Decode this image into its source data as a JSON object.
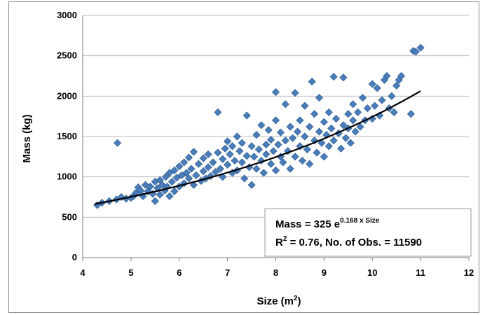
{
  "chart_data": {
    "type": "scatter",
    "title": "",
    "xlabel": "Size (m",
    "xlabel_sup": "2",
    "xlabel_end": ")",
    "ylabel": "Mass (kg)",
    "xlim": [
      4,
      12
    ],
    "ylim": [
      0,
      3000
    ],
    "x_ticks": [
      "4",
      "5",
      "6",
      "7",
      "8",
      "9",
      "10",
      "11",
      "12"
    ],
    "y_ticks": [
      "0",
      "500",
      "1000",
      "1500",
      "2000",
      "2500",
      "3000"
    ],
    "grid": "horizontal",
    "marker": "diamond",
    "colors": {
      "marker": "#4a7ebb",
      "marker_edge": "#2f5f95",
      "trend": "#000000",
      "grid": "#b8b8b8"
    },
    "trendline": {
      "type": "exponential",
      "a": 325,
      "b": 0.168,
      "x_range": [
        4.25,
        11.0
      ]
    },
    "annotation": {
      "line1_prefix": "Mass = 325 e",
      "line1_sup": "0.168 x Size",
      "line2_prefix": "R",
      "line2_sup": "2",
      "line2_rest": " = 0.76, No. of Obs.  = 11590"
    },
    "points": [
      [
        4.3,
        650
      ],
      [
        4.4,
        680
      ],
      [
        4.55,
        700
      ],
      [
        4.7,
        720
      ],
      [
        4.72,
        1420
      ],
      [
        4.8,
        750
      ],
      [
        4.9,
        730
      ],
      [
        5.0,
        740
      ],
      [
        5.05,
        760
      ],
      [
        5.1,
        800
      ],
      [
        5.15,
        870
      ],
      [
        5.2,
        830
      ],
      [
        5.25,
        760
      ],
      [
        5.3,
        900
      ],
      [
        5.35,
        820
      ],
      [
        5.4,
        880
      ],
      [
        5.45,
        790
      ],
      [
        5.5,
        700
      ],
      [
        5.5,
        940
      ],
      [
        5.55,
        860
      ],
      [
        5.6,
        780
      ],
      [
        5.6,
        960
      ],
      [
        5.65,
        900
      ],
      [
        5.7,
        830
      ],
      [
        5.72,
        1000
      ],
      [
        5.75,
        880
      ],
      [
        5.8,
        760
      ],
      [
        5.8,
        1050
      ],
      [
        5.85,
        940
      ],
      [
        5.9,
        820
      ],
      [
        5.9,
        1080
      ],
      [
        5.95,
        990
      ],
      [
        6.0,
        880
      ],
      [
        6.0,
        1130
      ],
      [
        6.05,
        1020
      ],
      [
        6.1,
        920
      ],
      [
        6.1,
        1180
      ],
      [
        6.15,
        1050
      ],
      [
        6.2,
        980
      ],
      [
        6.2,
        1240
      ],
      [
        6.25,
        1100
      ],
      [
        6.3,
        900
      ],
      [
        6.3,
        1310
      ],
      [
        6.35,
        1020
      ],
      [
        6.4,
        1160
      ],
      [
        6.45,
        950
      ],
      [
        6.5,
        1070
      ],
      [
        6.5,
        1230
      ],
      [
        6.55,
        980
      ],
      [
        6.6,
        1120
      ],
      [
        6.6,
        1280
      ],
      [
        6.65,
        1010
      ],
      [
        6.7,
        1180
      ],
      [
        6.75,
        1060
      ],
      [
        6.8,
        1800
      ],
      [
        6.8,
        1300
      ],
      [
        6.85,
        1100
      ],
      [
        6.9,
        1220
      ],
      [
        6.9,
        1000
      ],
      [
        6.95,
        1350
      ],
      [
        7.0,
        1150
      ],
      [
        7.0,
        1440
      ],
      [
        7.05,
        1280
      ],
      [
        7.1,
        1050
      ],
      [
        7.1,
        1380
      ],
      [
        7.15,
        1200
      ],
      [
        7.2,
        1500
      ],
      [
        7.2,
        1080
      ],
      [
        7.25,
        1320
      ],
      [
        7.3,
        1180
      ],
      [
        7.3,
        1420
      ],
      [
        7.35,
        980
      ],
      [
        7.4,
        1260
      ],
      [
        7.4,
        1760
      ],
      [
        7.45,
        1120
      ],
      [
        7.5,
        1380
      ],
      [
        7.5,
        900
      ],
      [
        7.55,
        1250
      ],
      [
        7.6,
        1520
      ],
      [
        7.6,
        1100
      ],
      [
        7.65,
        1340
      ],
      [
        7.7,
        1200
      ],
      [
        7.7,
        1640
      ],
      [
        7.75,
        1050
      ],
      [
        7.8,
        1400
      ],
      [
        7.8,
        1280
      ],
      [
        7.85,
        1580
      ],
      [
        7.9,
        1160
      ],
      [
        7.9,
        1460
      ],
      [
        7.95,
        1320
      ],
      [
        8.0,
        1700
      ],
      [
        8.0,
        1080
      ],
      [
        8.0,
        2050
      ],
      [
        8.05,
        1400
      ],
      [
        8.1,
        1250
      ],
      [
        8.1,
        1550
      ],
      [
        8.15,
        1180
      ],
      [
        8.2,
        1450
      ],
      [
        8.2,
        1900
      ],
      [
        8.25,
        1320
      ],
      [
        8.3,
        1620
      ],
      [
        8.3,
        1100
      ],
      [
        8.35,
        1480
      ],
      [
        8.4,
        1250
      ],
      [
        8.4,
        2040
      ],
      [
        8.45,
        1560
      ],
      [
        8.5,
        1380
      ],
      [
        8.5,
        1700
      ],
      [
        8.55,
        1200
      ],
      [
        8.6,
        1500
      ],
      [
        8.6,
        1880
      ],
      [
        8.65,
        1340
      ],
      [
        8.7,
        1620
      ],
      [
        8.7,
        1160
      ],
      [
        8.75,
        2180
      ],
      [
        8.8,
        1450
      ],
      [
        8.8,
        1780
      ],
      [
        8.85,
        1300
      ],
      [
        8.9,
        1560
      ],
      [
        8.9,
        1980
      ],
      [
        8.95,
        1420
      ],
      [
        9.0,
        1680
      ],
      [
        9.0,
        1250
      ],
      [
        9.05,
        1520
      ],
      [
        9.1,
        1800
      ],
      [
        9.1,
        1380
      ],
      [
        9.15,
        1600
      ],
      [
        9.2,
        2240
      ],
      [
        9.2,
        1450
      ],
      [
        9.25,
        1720
      ],
      [
        9.3,
        1540
      ],
      [
        9.35,
        1350
      ],
      [
        9.4,
        1640
      ],
      [
        9.4,
        2230
      ],
      [
        9.45,
        1480
      ],
      [
        9.5,
        1780
      ],
      [
        9.5,
        1600
      ],
      [
        9.55,
        1420
      ],
      [
        9.6,
        1700
      ],
      [
        9.6,
        1900
      ],
      [
        9.65,
        1560
      ],
      [
        9.7,
        1800
      ],
      [
        9.75,
        1620
      ],
      [
        9.8,
        1980
      ],
      [
        9.85,
        1700
      ],
      [
        9.9,
        1850
      ],
      [
        10.0,
        2150
      ],
      [
        10.0,
        1720
      ],
      [
        10.05,
        1880
      ],
      [
        10.1,
        2100
      ],
      [
        10.15,
        1760
      ],
      [
        10.2,
        1950
      ],
      [
        10.25,
        2200
      ],
      [
        10.3,
        2250
      ],
      [
        10.35,
        1850
      ],
      [
        10.4,
        2000
      ],
      [
        10.45,
        1800
      ],
      [
        10.5,
        2130
      ],
      [
        10.55,
        2200
      ],
      [
        10.6,
        2250
      ],
      [
        10.8,
        1780
      ],
      [
        10.85,
        2560
      ],
      [
        10.9,
        2550
      ],
      [
        11.0,
        2600
      ]
    ]
  }
}
